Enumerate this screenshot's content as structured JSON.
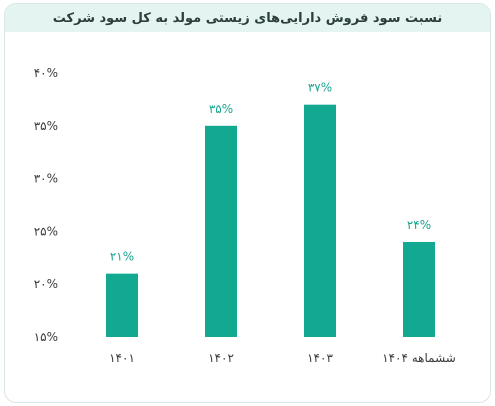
{
  "chart_data": {
    "type": "bar",
    "title": "نسبت سود فروش دارایی‌های زیستی مولد به کل سود شرکت",
    "categories": [
      "۱۴۰۱",
      "۱۴۰۲",
      "۱۴۰۳",
      "ششماهه ۱۴۰۴"
    ],
    "values": [
      21,
      35,
      37,
      24
    ],
    "value_labels": [
      "۲۱%",
      "۳۵%",
      "۳۷%",
      "۲۴%"
    ],
    "ylim": [
      15,
      40
    ],
    "yticks": [
      15,
      20,
      25,
      30,
      35,
      40
    ],
    "ytick_labels": [
      "۱۵%",
      "۲۰%",
      "۲۵%",
      "۳۰%",
      "۳۵%",
      "۴۰%"
    ],
    "bar_color": "#13a991",
    "label_color": "#1aa58f",
    "grid": false
  }
}
